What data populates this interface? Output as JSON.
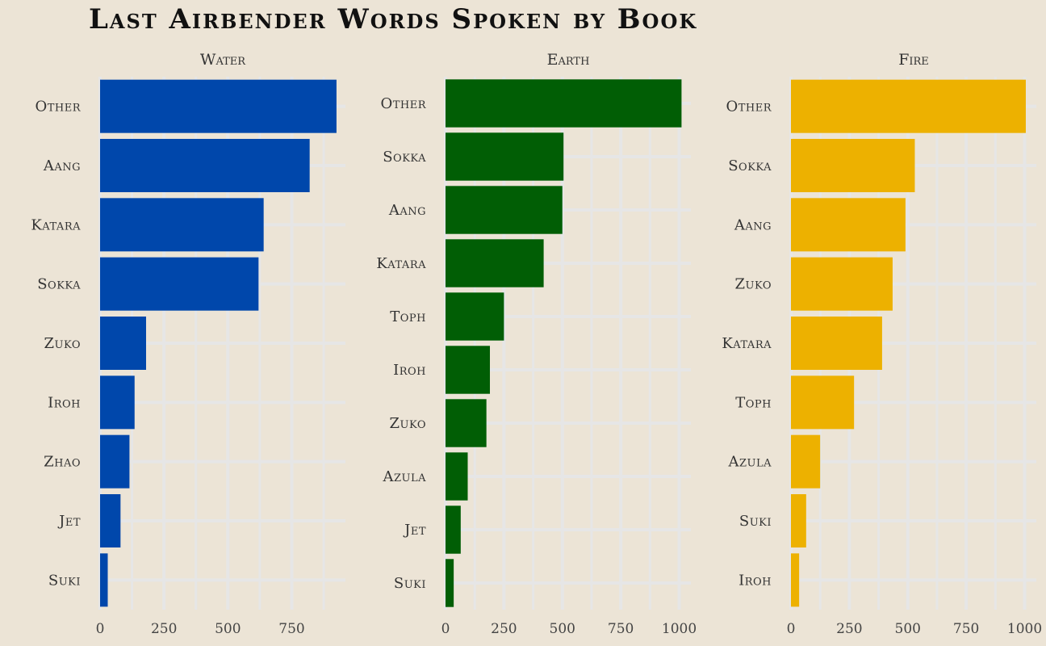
{
  "title": "Last Airbender Words Spoken by Book",
  "colors": {
    "background": "#ece4d6",
    "grid": "#e6e6e6",
    "water": "#0047ab",
    "earth": "#015e05",
    "fire": "#edb100"
  },
  "chart_data": [
    {
      "type": "bar",
      "orientation": "horizontal",
      "title": "Water",
      "color": "#0047ab",
      "categories": [
        "Other",
        "Aang",
        "Katara",
        "Sokka",
        "Zuko",
        "Iroh",
        "Zhao",
        "Jet",
        "Suki"
      ],
      "values": [
        925,
        820,
        640,
        620,
        180,
        135,
        115,
        80,
        30
      ],
      "xlim": [
        0,
        960
      ],
      "xticks": [
        0,
        250,
        500,
        750
      ],
      "grid": true
    },
    {
      "type": "bar",
      "orientation": "horizontal",
      "title": "Earth",
      "color": "#015e05",
      "categories": [
        "Other",
        "Sokka",
        "Aang",
        "Katara",
        "Toph",
        "Iroh",
        "Zuko",
        "Azula",
        "Jet",
        "Suki"
      ],
      "values": [
        1010,
        505,
        500,
        420,
        250,
        190,
        175,
        95,
        65,
        35
      ],
      "xlim": [
        0,
        1050
      ],
      "xticks": [
        0,
        250,
        500,
        750,
        1000
      ],
      "grid": true
    },
    {
      "type": "bar",
      "orientation": "horizontal",
      "title": "Fire",
      "color": "#edb100",
      "categories": [
        "Other",
        "Sokka",
        "Aang",
        "Zuko",
        "Katara",
        "Toph",
        "Azula",
        "Suki",
        "Iroh"
      ],
      "values": [
        1005,
        530,
        490,
        435,
        390,
        270,
        125,
        65,
        35
      ],
      "xlim": [
        0,
        1050
      ],
      "xticks": [
        0,
        250,
        500,
        750,
        1000
      ],
      "grid": true
    }
  ]
}
